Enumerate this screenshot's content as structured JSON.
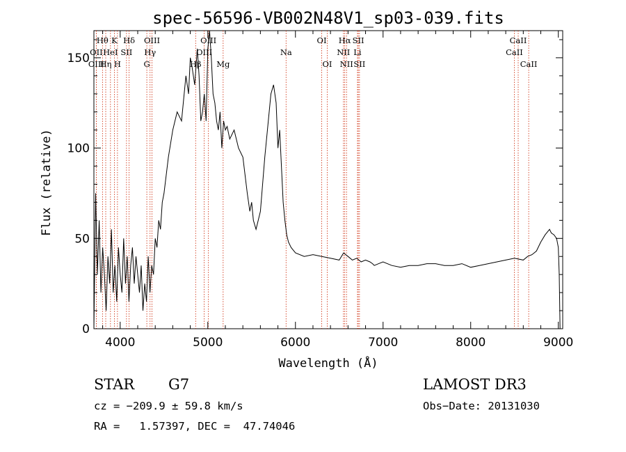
{
  "chart_data": {
    "type": "line",
    "title": "spec-56596-VB002N48V1_sp03-039.fits",
    "xlabel": "Wavelength (Å)",
    "ylabel": "Flux (relative)",
    "xlim": [
      3700,
      9050
    ],
    "ylim": [
      0,
      165
    ],
    "xticks": [
      4000,
      5000,
      6000,
      7000,
      8000,
      9000
    ],
    "yticks": [
      0,
      50,
      100,
      150
    ],
    "grid": false,
    "series": [
      {
        "x": [
          3700,
          3720,
          3740,
          3760,
          3780,
          3800,
          3820,
          3840,
          3860,
          3880,
          3900,
          3920,
          3940,
          3960,
          3980,
          4000,
          4020,
          4040,
          4060,
          4080,
          4100,
          4120,
          4140,
          4160,
          4180,
          4200,
          4220,
          4240,
          4260,
          4280,
          4300,
          4320,
          4340,
          4360,
          4380,
          4400,
          4420,
          4440,
          4460,
          4480,
          4500,
          4550,
          4600,
          4650,
          4700,
          4750,
          4780,
          4800,
          4820,
          4850,
          4880,
          4900,
          4920,
          4940,
          4960,
          4980,
          5000,
          5020,
          5040,
          5060,
          5080,
          5100,
          5120,
          5140,
          5160,
          5180,
          5200,
          5220,
          5250,
          5300,
          5350,
          5400,
          5450,
          5480,
          5500,
          5520,
          5550,
          5600,
          5650,
          5700,
          5720,
          5750,
          5780,
          5800,
          5820,
          5840,
          5860,
          5880,
          5900,
          5920,
          5950,
          6000,
          6100,
          6200,
          6300,
          6400,
          6500,
          6550,
          6600,
          6650,
          6700,
          6750,
          6800,
          6850,
          6880,
          6900,
          6950,
          7000,
          7100,
          7200,
          7300,
          7400,
          7500,
          7600,
          7700,
          7800,
          7900,
          8000,
          8100,
          8200,
          8300,
          8400,
          8500,
          8600,
          8650,
          8700,
          8750,
          8800,
          8850,
          8900,
          8920,
          8950,
          8980,
          9000,
          9010,
          9020
        ],
        "values": [
          0,
          75,
          30,
          60,
          20,
          45,
          30,
          10,
          40,
          25,
          55,
          20,
          35,
          15,
          45,
          30,
          20,
          50,
          25,
          40,
          15,
          35,
          45,
          25,
          40,
          30,
          20,
          35,
          10,
          25,
          15,
          40,
          20,
          35,
          30,
          50,
          45,
          60,
          55,
          70,
          75,
          95,
          110,
          120,
          115,
          140,
          130,
          150,
          145,
          135,
          155,
          140,
          115,
          120,
          130,
          115,
          155,
          165,
          150,
          130,
          125,
          115,
          110,
          120,
          100,
          115,
          110,
          112,
          105,
          110,
          100,
          95,
          75,
          65,
          70,
          60,
          55,
          65,
          95,
          120,
          130,
          135,
          125,
          100,
          110,
          90,
          70,
          60,
          52,
          48,
          45,
          42,
          40,
          41,
          40,
          39,
          38,
          42,
          40,
          38,
          39,
          37,
          38,
          37,
          36,
          35,
          36,
          37,
          35,
          34,
          35,
          35,
          36,
          36,
          35,
          35,
          36,
          34,
          35,
          36,
          37,
          38,
          39,
          38,
          40,
          41,
          43,
          48,
          52,
          55,
          53,
          52,
          50,
          45,
          30,
          0
        ]
      }
    ],
    "spectral_lines": [
      {
        "label": "Hθ",
        "x": 3798,
        "row": 0
      },
      {
        "label": "OII",
        "x": 3727,
        "row": 1
      },
      {
        "label": "OIII",
        "x": 3727,
        "row": 2
      },
      {
        "label": "Hη",
        "x": 3835,
        "row": 2
      },
      {
        "label": "HeI",
        "x": 3889,
        "row": 1
      },
      {
        "label": "K",
        "x": 3934,
        "row": 0
      },
      {
        "label": "H",
        "x": 3969,
        "row": 2
      },
      {
        "label": "SII",
        "x": 4072,
        "row": 1
      },
      {
        "label": "Hδ",
        "x": 4102,
        "row": 0
      },
      {
        "label": "OIII",
        "x": 4363,
        "row": 0
      },
      {
        "label": "Hγ",
        "x": 4341,
        "row": 1
      },
      {
        "label": "G",
        "x": 4304,
        "row": 2
      },
      {
        "label": "Hβ",
        "x": 4861,
        "row": 2
      },
      {
        "label": "OIII",
        "x": 5007,
        "row": 0
      },
      {
        "label": "OIII",
        "x": 4959,
        "row": 1
      },
      {
        "label": "Mg",
        "x": 5175,
        "row": 2
      },
      {
        "label": "Na",
        "x": 5893,
        "row": 1
      },
      {
        "label": "OI",
        "x": 6300,
        "row": 0
      },
      {
        "label": "OI",
        "x": 6363,
        "row": 2
      },
      {
        "label": "Hα",
        "x": 6563,
        "row": 0
      },
      {
        "label": "NII",
        "x": 6548,
        "row": 1
      },
      {
        "label": "NII",
        "x": 6583,
        "row": 2
      },
      {
        "label": "SII",
        "x": 6717,
        "row": 0
      },
      {
        "label": "Li",
        "x": 6708,
        "row": 1
      },
      {
        "label": "SII",
        "x": 6731,
        "row": 2
      },
      {
        "label": "CaII",
        "x": 8542,
        "row": 0
      },
      {
        "label": "CaII",
        "x": 8498,
        "row": 1
      },
      {
        "label": "CaII",
        "x": 8662,
        "row": 2
      }
    ],
    "line_color": "#000000",
    "marker_color": "#cc2200"
  },
  "info": {
    "class_label": "STAR",
    "subclass": "G7",
    "survey": "LAMOST DR3",
    "cz": "cz = −209.9 ± 59.8 km/s",
    "obs_date": "Obs−Date: 20131030",
    "coords": "RA =   1.57397, DEC =  47.74046"
  }
}
